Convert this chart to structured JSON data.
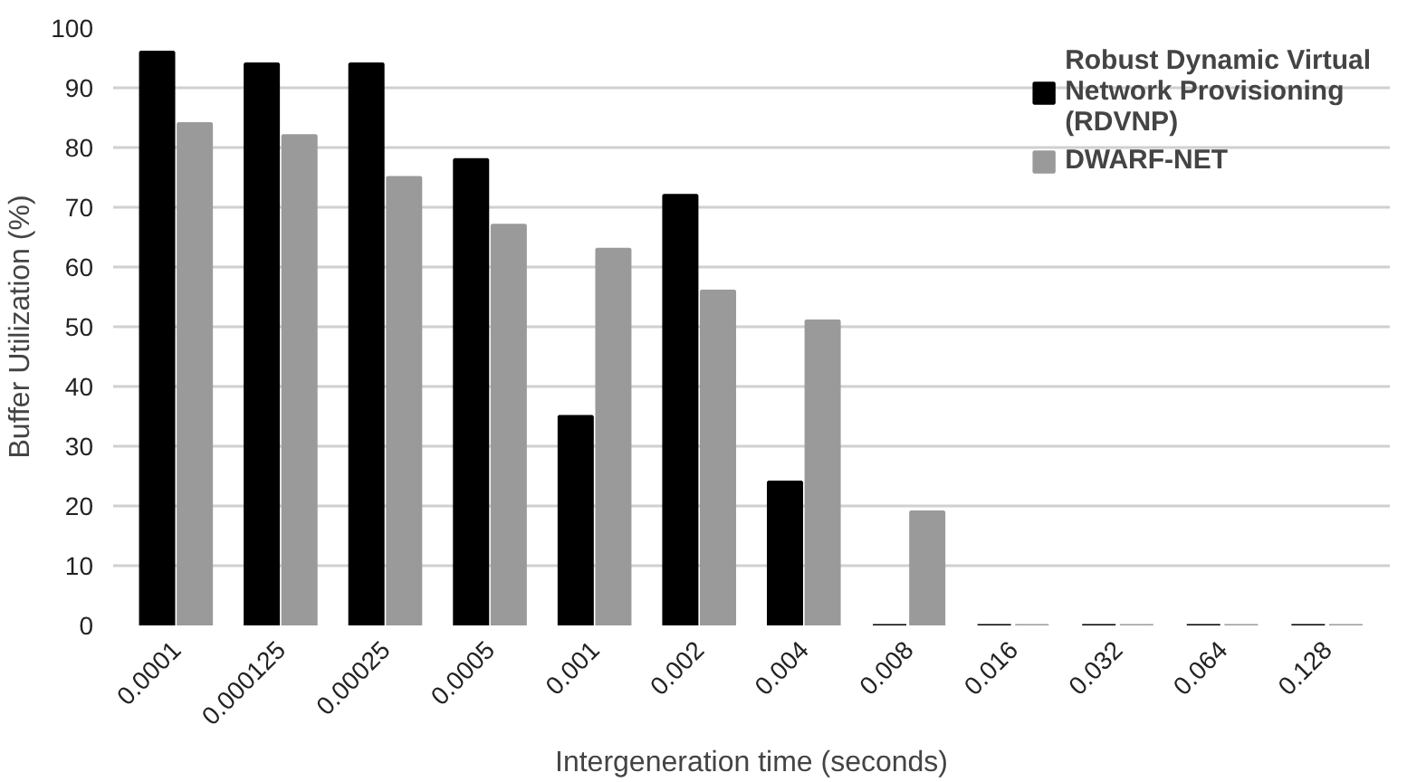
{
  "chart_data": {
    "type": "bar",
    "xlabel": "Intergeneration time (seconds)",
    "ylabel": "Buffer Utilization (%)",
    "categories": [
      "0.0001",
      "0.000125",
      "0.00025",
      "0.0005",
      "0.001",
      "0.002",
      "0.004",
      "0.008",
      "0.016",
      "0.032",
      "0.064",
      "0.128"
    ],
    "series": [
      {
        "name": "Robust Dynamic Virtual Network Provisioning (RDVNP)",
        "color": "#000000",
        "values": [
          96,
          94,
          94,
          78,
          35,
          72,
          24,
          0,
          0,
          0,
          0,
          0
        ]
      },
      {
        "name": "DWARF-NET",
        "color": "#9a9a9a",
        "values": [
          84,
          82,
          75,
          67,
          63,
          56,
          51,
          19,
          0,
          0,
          0,
          0
        ]
      }
    ],
    "ylim": [
      0,
      100
    ],
    "yticks": [
      0,
      10,
      20,
      30,
      40,
      50,
      60,
      70,
      80,
      90,
      100
    ],
    "grid": "y",
    "legend": "top right"
  }
}
